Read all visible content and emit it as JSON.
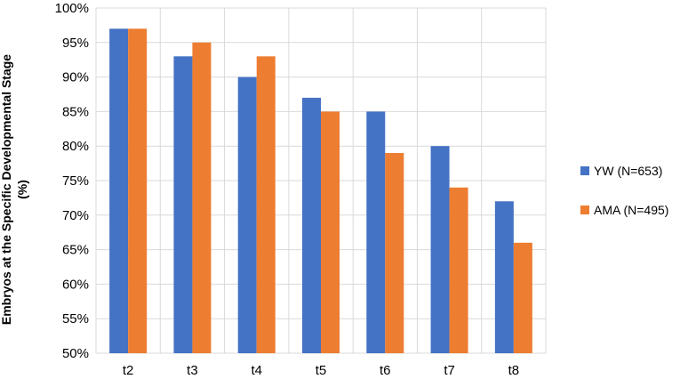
{
  "chart_data": {
    "type": "bar",
    "title": "",
    "xlabel": "",
    "ylabel": "Embryos at the Specific Developmental Stage",
    "ylabel_unit": "(%)",
    "categories": [
      "t2",
      "t3",
      "t4",
      "t5",
      "t6",
      "t7",
      "t8"
    ],
    "series": [
      {
        "name": "YW (N=653)",
        "color": "#4472C4",
        "values": [
          97,
          93,
          90,
          87,
          85,
          80,
          72
        ]
      },
      {
        "name": "AMA (N=495)",
        "color": "#ED7D31",
        "values": [
          97,
          95,
          93,
          85,
          79,
          74,
          66
        ]
      }
    ],
    "ylim": [
      50,
      100
    ],
    "yticks": [
      "50%",
      "55%",
      "60%",
      "65%",
      "70%",
      "75%",
      "80%",
      "85%",
      "90%",
      "95%",
      "100%"
    ],
    "grid": true,
    "legend_position": "right"
  }
}
